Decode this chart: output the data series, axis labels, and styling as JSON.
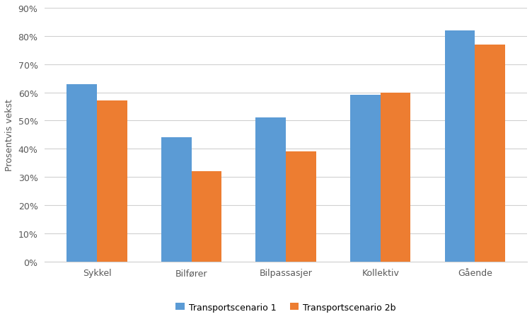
{
  "categories": [
    "Sykkel",
    "Bilfører",
    "Bilpassasjer",
    "Kollektiv",
    "Gående"
  ],
  "scenario1": [
    0.63,
    0.44,
    0.51,
    0.59,
    0.82
  ],
  "scenario2b": [
    0.57,
    0.32,
    0.39,
    0.6,
    0.77
  ],
  "legend_labels": [
    "Transportscenario 1",
    "Transportscenario 2b"
  ],
  "color1": "#5B9BD5",
  "color2": "#ED7D31",
  "ylabel": "Prosentvis vekst",
  "ylim": [
    0,
    0.9
  ],
  "yticks": [
    0.0,
    0.1,
    0.2,
    0.3,
    0.4,
    0.5,
    0.6,
    0.7,
    0.8,
    0.9
  ],
  "background_color": "#ffffff",
  "grid_color": "#d0d0d0",
  "tick_color": "#595959",
  "ylabel_color": "#595959"
}
